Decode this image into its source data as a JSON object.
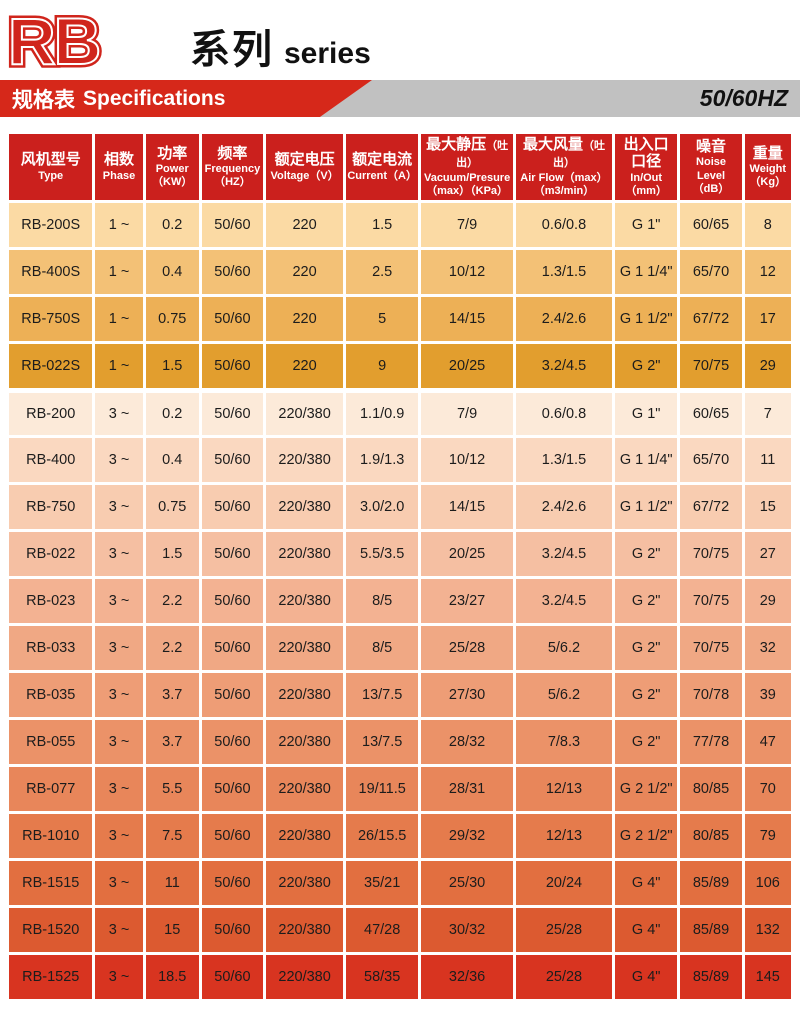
{
  "logo": {
    "text": "RB",
    "cn": "系列",
    "en": "series",
    "red": "#d0251c"
  },
  "spec_bar": {
    "title_cn": "规格表",
    "title_en": "Specifications",
    "frequency_badge": "50/60HZ",
    "red": "#d6281a",
    "gray": "#c1c1c1"
  },
  "table": {
    "header_bg": "#cb201d",
    "columns": [
      {
        "cn": "风机型号",
        "en": "Type"
      },
      {
        "cn": "相数",
        "en": "Phase"
      },
      {
        "cn": "功率",
        "en": "Power\n（KW）"
      },
      {
        "cn": "频率",
        "en": "Frequency\n（HZ）"
      },
      {
        "cn": "额定电压",
        "en": "Voltage（V）"
      },
      {
        "cn": "额定电流",
        "en": "Current（A）"
      },
      {
        "cn": "最大静压",
        "cn_small": "（吐出）",
        "en": "Vacuum/Presure\n（max）（KPa）"
      },
      {
        "cn": "最大风量",
        "cn_small": "（吐出）",
        "en": "Air Flow（max）\n（m3/min）"
      },
      {
        "cn": "出入口\n口径",
        "en": "In/Out（mm）"
      },
      {
        "cn": "噪音",
        "en": "Noise Level\n（dB）"
      },
      {
        "cn": "重量",
        "en": "Weight\n（Kg）"
      }
    ],
    "rows": [
      {
        "bg": "#fbdaa4",
        "group_start": false,
        "cells": [
          "RB-200S",
          "1 ~",
          "0.2",
          "50/60",
          "220",
          "1.5",
          "7/9",
          "0.6/0.8",
          "G 1\"",
          "60/65",
          "8"
        ]
      },
      {
        "bg": "#f3c176",
        "group_start": false,
        "cells": [
          "RB-400S",
          "1 ~",
          "0.4",
          "50/60",
          "220",
          "2.5",
          "10/12",
          "1.3/1.5",
          "G 1 1/4\"",
          "65/70",
          "12"
        ]
      },
      {
        "bg": "#edb056",
        "group_start": false,
        "cells": [
          "RB-750S",
          "1 ~",
          "0.75",
          "50/60",
          "220",
          "5",
          "14/15",
          "2.4/2.6",
          "G 1 1/2\"",
          "67/72",
          "17"
        ]
      },
      {
        "bg": "#e29e2e",
        "group_start": false,
        "cells": [
          "RB-022S",
          "1 ~",
          "1.5",
          "50/60",
          "220",
          "9",
          "20/25",
          "3.2/4.5",
          "G 2\"",
          "70/75",
          "29"
        ]
      },
      {
        "bg": "#fcead9",
        "group_start": true,
        "cells": [
          "RB-200",
          "3 ~",
          "0.2",
          "50/60",
          "220/380",
          "1.1/0.9",
          "7/9",
          "0.6/0.8",
          "G 1\"",
          "60/65",
          "7"
        ]
      },
      {
        "bg": "#fad8c0",
        "group_start": false,
        "cells": [
          "RB-400",
          "3 ~",
          "0.4",
          "50/60",
          "220/380",
          "1.9/1.3",
          "10/12",
          "1.3/1.5",
          "G 1 1/4\"",
          "65/70",
          "11"
        ]
      },
      {
        "bg": "#f8ccb0",
        "group_start": false,
        "cells": [
          "RB-750",
          "3 ~",
          "0.75",
          "50/60",
          "220/380",
          "3.0/2.0",
          "14/15",
          "2.4/2.6",
          "G 1 1/2\"",
          "67/72",
          "15"
        ]
      },
      {
        "bg": "#f5bfa2",
        "group_start": false,
        "cells": [
          "RB-022",
          "3 ~",
          "1.5",
          "50/60",
          "220/380",
          "5.5/3.5",
          "20/25",
          "3.2/4.5",
          "G 2\"",
          "70/75",
          "27"
        ]
      },
      {
        "bg": "#f3b292",
        "group_start": false,
        "cells": [
          "RB-023",
          "3 ~",
          "2.2",
          "50/60",
          "220/380",
          "8/5",
          "23/27",
          "3.2/4.5",
          "G 2\"",
          "70/75",
          "29"
        ]
      },
      {
        "bg": "#f0a884",
        "group_start": false,
        "cells": [
          "RB-033",
          "3 ~",
          "2.2",
          "50/60",
          "220/380",
          "8/5",
          "25/28",
          "5/6.2",
          "G 2\"",
          "70/75",
          "32"
        ]
      },
      {
        "bg": "#ee9d76",
        "group_start": false,
        "cells": [
          "RB-035",
          "3 ~",
          "3.7",
          "50/60",
          "220/380",
          "13/7.5",
          "27/30",
          "5/6.2",
          "G 2\"",
          "70/78",
          "39"
        ]
      },
      {
        "bg": "#eb9268",
        "group_start": false,
        "cells": [
          "RB-055",
          "3 ~",
          "3.7",
          "50/60",
          "220/380",
          "13/7.5",
          "28/32",
          "7/8.3",
          "G 2\"",
          "77/78",
          "47"
        ]
      },
      {
        "bg": "#e8865a",
        "group_start": false,
        "cells": [
          "RB-077",
          "3 ~",
          "5.5",
          "50/60",
          "220/380",
          "19/11.5",
          "28/31",
          "12/13",
          "G 2 1/2\"",
          "80/85",
          "70"
        ]
      },
      {
        "bg": "#e57b4c",
        "group_start": false,
        "cells": [
          "RB-1010",
          "3 ~",
          "7.5",
          "50/60",
          "220/380",
          "26/15.5",
          "29/32",
          "12/13",
          "G 2 1/2\"",
          "80/85",
          "79"
        ]
      },
      {
        "bg": "#e26f40",
        "group_start": false,
        "cells": [
          "RB-1515",
          "3 ~",
          "11",
          "50/60",
          "220/380",
          "35/21",
          "25/30",
          "20/24",
          "G 4\"",
          "85/89",
          "106"
        ]
      },
      {
        "bg": "#dc5a30",
        "group_start": false,
        "cells": [
          "RB-1520",
          "3 ~",
          "15",
          "50/60",
          "220/380",
          "47/28",
          "30/32",
          "25/28",
          "G 4\"",
          "85/89",
          "132"
        ]
      },
      {
        "bg": "#d83420",
        "group_start": false,
        "cells": [
          "RB-1525",
          "3 ~",
          "18.5",
          "50/60",
          "220/380",
          "58/35",
          "32/36",
          "25/28",
          "G 4\"",
          "85/89",
          "145"
        ]
      }
    ]
  }
}
